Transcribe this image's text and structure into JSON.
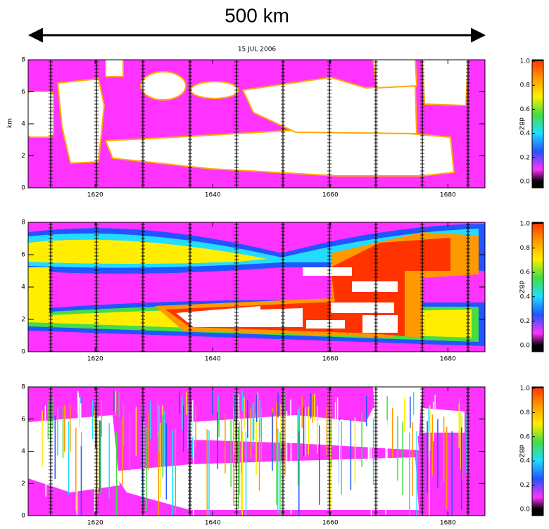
{
  "header": {
    "scale_bar": "500 km"
  },
  "chart_data": [
    {
      "type": "heatmap",
      "title": "15 JUL 2006",
      "ylabel": "km",
      "colorbar_label": "dBZ",
      "xlim": [
        1608.6,
        1686.3
      ],
      "ylim": [
        0,
        8
      ],
      "xticks": [
        1620,
        1640,
        1660,
        1680
      ],
      "yticks": [
        0,
        2,
        4,
        6,
        8
      ],
      "clim": [
        0,
        1
      ],
      "cticks": [
        {
          "value": 0,
          "label": "0.0"
        },
        {
          "value": 0.2,
          "label": "0.2"
        },
        {
          "value": 0.4,
          "label": "0.4"
        },
        {
          "value": 0.6,
          "label": "0.6"
        },
        {
          "value": 0.8,
          "label": "0.8"
        },
        {
          "value": 1,
          "label": "1.0"
        }
      ],
      "colormap": [
        "#000000",
        "#ff33ff",
        "#2255ff",
        "#22ddff",
        "#44dd44",
        "#ffee00",
        "#ff9900",
        "#ff3300"
      ]
    },
    {
      "type": "heatmap",
      "colorbar_label": "dBZ",
      "xlim": [
        1608.6,
        1686.3
      ],
      "ylim": [
        0,
        8
      ],
      "xticks": [
        1620,
        1640,
        1660,
        1680
      ],
      "yticks": [
        0,
        2,
        4,
        6,
        8
      ],
      "clim": [
        0,
        1
      ],
      "cticks": [
        {
          "value": 0,
          "label": "0.0"
        },
        {
          "value": 0.2,
          "label": "0.2"
        },
        {
          "value": 0.4,
          "label": "0.4"
        },
        {
          "value": 0.6,
          "label": "0.6"
        },
        {
          "value": 0.8,
          "label": "0.8"
        },
        {
          "value": 1,
          "label": "1.0"
        }
      ],
      "colormap": [
        "#000000",
        "#ff33ff",
        "#2255ff",
        "#22ddff",
        "#44dd44",
        "#ffee00",
        "#ff9900",
        "#ff3300"
      ]
    },
    {
      "type": "heatmap",
      "colorbar_label": "dBZ",
      "xlim": [
        1608.6,
        1686.3
      ],
      "ylim": [
        0,
        8
      ],
      "xticks": [
        1620,
        1640,
        1660,
        1680
      ],
      "yticks": [
        0,
        2,
        4,
        6,
        8
      ],
      "clim": [
        0,
        1
      ],
      "cticks": [
        {
          "value": 0,
          "label": "0.0"
        },
        {
          "value": 0.2,
          "label": "0.2"
        },
        {
          "value": 0.4,
          "label": "0.4"
        },
        {
          "value": 0.6,
          "label": "0.6"
        },
        {
          "value": 0.8,
          "label": "0.8"
        },
        {
          "value": 1,
          "label": "1.0"
        }
      ],
      "colormap": [
        "#000000",
        "#ff33ff",
        "#2255ff",
        "#22ddff",
        "#44dd44",
        "#ffee00",
        "#ff9900",
        "#ff3300"
      ]
    }
  ]
}
